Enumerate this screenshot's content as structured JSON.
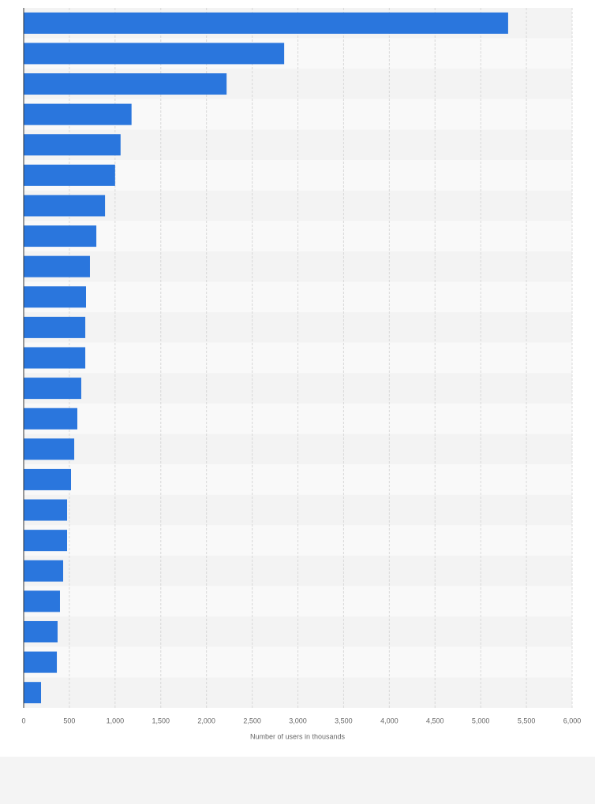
{
  "chart_data": {
    "type": "barh",
    "x_label": "Number of users in thousands",
    "categories": [
      null,
      null,
      null,
      null,
      null,
      null,
      null,
      null,
      null,
      null,
      null,
      null,
      null,
      null,
      null,
      null,
      null,
      null,
      null,
      null,
      null,
      null,
      null
    ],
    "values": [
      5300,
      2850,
      2220,
      1180,
      1060,
      1000,
      890,
      795,
      725,
      682,
      674,
      674,
      630,
      587,
      553,
      518,
      475,
      475,
      432,
      397,
      371,
      363,
      190
    ],
    "color": "#2a76dd",
    "xlim": [
      0,
      6000
    ],
    "xticks": [
      0,
      500,
      {
        "value": 1000,
        "label": "1,000"
      },
      {
        "value": 1500,
        "label": "1,500"
      },
      {
        "value": 2000,
        "label": "2,000"
      },
      {
        "value": 2500,
        "label": "2,500"
      },
      {
        "value": 3000,
        "label": "3,000"
      },
      {
        "value": 3500,
        "label": "3,500"
      },
      {
        "value": 4000,
        "label": "4,000"
      },
      {
        "value": 4500,
        "label": "4,500"
      },
      {
        "value": 5000,
        "label": "5,000"
      },
      {
        "value": 5500,
        "label": "5,500"
      },
      {
        "value": 6000,
        "label": "6,000"
      }
    ],
    "grid": true
  }
}
